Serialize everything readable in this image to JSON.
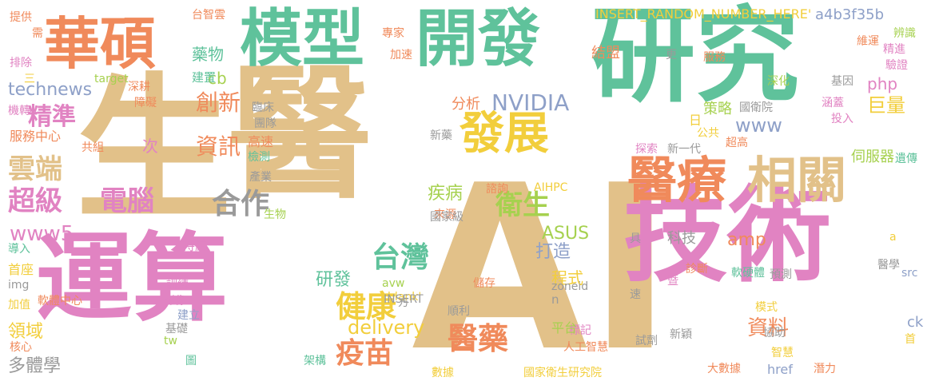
{
  "palette": {
    "green": "#5fc29b",
    "tan": "#e2c189",
    "pink": "#e183c2",
    "orange": "#f08a5b",
    "gray": "#9a9a9a",
    "blue": "#8ea0c8",
    "lime": "#a6d14f",
    "yellow": "#f2ce3c"
  },
  "words": [
    "生",
    "醫",
    "AI",
    "運算",
    "技術",
    "研究",
    "模型",
    "開發",
    "華碩",
    "醫療",
    "相關",
    "發展",
    "台灣",
    "健康",
    "疫苗",
    "醫藥",
    "衛生",
    "雲端",
    "超級",
    "電腦",
    "合作",
    "精準",
    "創新",
    "資訊",
    "NVIDIA",
    "delivery",
    "www5",
    "technews",
    "www",
    "php",
    "amp",
    "cb",
    "分析",
    "藥物",
    "建置",
    "臨床",
    "團隊",
    "新藥",
    "疾病",
    "資料",
    "打造",
    "程式",
    "研發",
    "領域",
    "巨量",
    "策略",
    "國衛院",
    "伺服器",
    "a4b3f35b",
    "INSERT_RANDOM_NUMBER_HERE'",
    "台智雲",
    "專家",
    "加速",
    "結盟",
    "服務",
    "深化",
    "基因",
    "維運",
    "精進",
    "驗證",
    "辨識",
    "提供",
    "需",
    "排除",
    "三",
    "target",
    "深耕",
    "障礙",
    "機轉",
    "服務中心",
    "共組",
    "次",
    "高速",
    "檢測",
    "產業",
    "生物",
    "來源",
    "諮詢",
    "國家級",
    "AIHPC",
    "ASUS",
    "具",
    "科技",
    "日",
    "公共",
    "新一代",
    "探索",
    "超高",
    "投入",
    "遺傳",
    "涵蓋",
    "更",
    "持續",
    "導入",
    "首座",
    "img",
    "加值",
    "軟體中心",
    "訓練",
    "影像",
    "建立",
    "基礎",
    "核心",
    "多體學",
    "tw",
    "圖",
    "架構",
    "數據",
    "國家衛生研究院",
    "人工智慧",
    "標記",
    "平台",
    "n",
    "zoneid",
    "_blank'",
    "avw",
    "INSERT",
    "順利",
    "儲存",
    "方",
    "速",
    "試劑",
    "新穎",
    "暨",
    "診斷",
    "軟硬體",
    "預測",
    "協助",
    "模式",
    "智慧",
    "大數據",
    "潛力",
    "首",
    "ck",
    "src",
    "醫學",
    "a",
    "href"
  ]
}
